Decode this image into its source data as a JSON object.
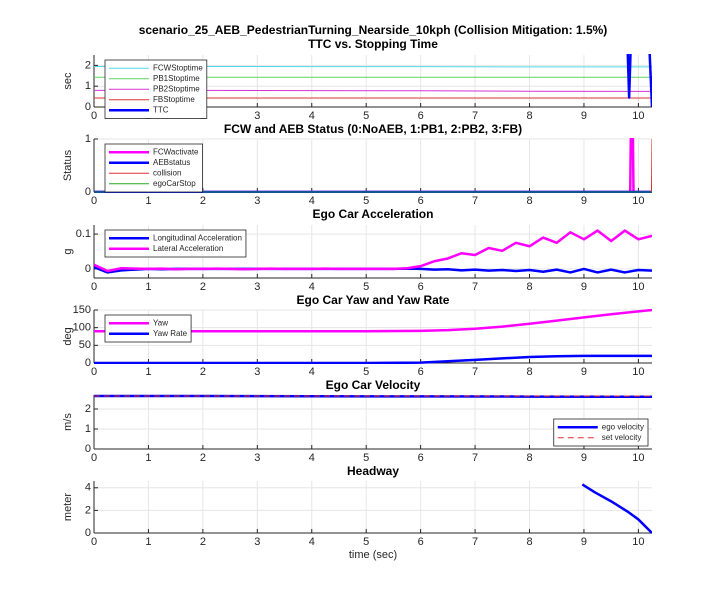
{
  "chart_data": [
    {
      "type": "line",
      "title": "scenario_25_AEB_PedestrianTurning_Nearside_10kph (Collision Mitigation: 1.5%)",
      "subtitle": "TTC vs. Stopping Time",
      "ylabel": "sec",
      "x": [
        0,
        2,
        4,
        6,
        8,
        9.8,
        9.83,
        9.86,
        10,
        10.2,
        10.25
      ],
      "xlim": [
        0,
        10.25
      ],
      "xticks": [
        0,
        1,
        2,
        3,
        4,
        5,
        6,
        7,
        8,
        9,
        10
      ],
      "ylim": [
        0,
        2.5
      ],
      "yticks": [
        0,
        1,
        2
      ],
      "grid": true,
      "legend": "upper left",
      "series": [
        {
          "name": "FCWStoptime",
          "color": "#4dd9e8",
          "width": 1,
          "values": [
            1.95,
            1.95,
            1.94,
            1.94,
            1.93,
            1.93,
            1.93,
            1.93,
            1.93,
            1.93,
            1.93
          ]
        },
        {
          "name": "PB1Stoptime",
          "color": "#5fd35f",
          "width": 1,
          "values": [
            1.43,
            1.43,
            1.43,
            1.43,
            1.43,
            1.43,
            1.43,
            1.43,
            1.43,
            1.43,
            1.43
          ]
        },
        {
          "name": "PB2Stoptime",
          "color": "#d633d6",
          "width": 1,
          "values": [
            0.8,
            0.8,
            0.79,
            0.78,
            0.76,
            0.75,
            0.75,
            0.75,
            0.75,
            0.75,
            0.75
          ]
        },
        {
          "name": "FBStoptime",
          "color": "#e03030",
          "width": 1,
          "values": [
            0.43,
            0.43,
            0.43,
            0.43,
            0.43,
            0.43,
            0.43,
            0.43,
            0.43,
            0.43,
            0.43
          ]
        },
        {
          "name": "TTC",
          "color": "#0000ff",
          "width": 2.5,
          "values": [
            null,
            null,
            null,
            null,
            null,
            3,
            0.45,
            3,
            null,
            3,
            0
          ]
        }
      ]
    },
    {
      "type": "line",
      "title": "FCW and AEB Status (0:NoAEB, 1:PB1, 2:PB2, 3:FB)",
      "ylabel": "Status",
      "x": [
        0,
        9.85,
        9.86,
        9.9,
        9.91,
        10.24,
        10.25
      ],
      "xlim": [
        0,
        10.25
      ],
      "xticks": [
        0,
        1,
        2,
        3,
        4,
        5,
        6,
        7,
        8,
        9,
        10
      ],
      "ylim": [
        0,
        1
      ],
      "yticks": [
        0,
        1
      ],
      "grid": true,
      "legend": "upper left",
      "series": [
        {
          "name": "FCWactivate",
          "color": "#ff00ff",
          "width": 2.5,
          "values": [
            0,
            0,
            1,
            1,
            0,
            0,
            0
          ]
        },
        {
          "name": "AEBstatus",
          "color": "#0000ff",
          "width": 2.5,
          "values": [
            0,
            0,
            0,
            0,
            0,
            0,
            0
          ]
        },
        {
          "name": "collision",
          "color": "#e03030",
          "width": 1,
          "values": [
            0,
            0,
            0,
            0,
            0,
            0,
            1
          ]
        },
        {
          "name": "egoCarStop",
          "color": "#22aa22",
          "width": 1,
          "values": [
            0,
            0,
            0,
            0,
            0,
            0,
            0
          ]
        }
      ]
    },
    {
      "type": "line",
      "title": "Ego Car Acceleration",
      "ylabel": "g",
      "x": [
        0,
        0.25,
        0.5,
        0.75,
        1,
        1.25,
        1.5,
        1.75,
        2,
        2.25,
        2.5,
        2.75,
        3,
        3.25,
        3.5,
        3.75,
        4,
        4.25,
        4.5,
        4.75,
        5,
        5.25,
        5.5,
        5.75,
        6,
        6.25,
        6.5,
        6.75,
        7,
        7.25,
        7.5,
        7.75,
        8,
        8.25,
        8.5,
        8.75,
        9,
        9.25,
        9.5,
        9.75,
        10,
        10.25
      ],
      "xlim": [
        0,
        10.25
      ],
      "xticks": [
        0,
        1,
        2,
        3,
        4,
        5,
        6,
        7,
        8,
        9,
        10
      ],
      "ylim": [
        -0.026,
        0.126
      ],
      "yticks": [
        0,
        0.1
      ],
      "grid": true,
      "legend": "upper left",
      "series": [
        {
          "name": "Longitudinal Acceleration",
          "color": "#0000ff",
          "width": 2.5,
          "values": [
            0.005,
            -0.01,
            -0.004,
            -0.002,
            0,
            -0.001,
            0,
            0,
            0,
            0,
            0,
            0,
            0,
            0,
            0,
            0,
            0,
            0,
            0,
            0,
            0,
            0,
            0,
            0.001,
            0,
            -0.002,
            -0.001,
            -0.004,
            -0.002,
            -0.005,
            -0.003,
            -0.006,
            -0.003,
            -0.008,
            -0.002,
            -0.01,
            0,
            -0.01,
            -0.002,
            -0.01,
            -0.003,
            -0.005
          ]
        },
        {
          "name": "Lateral Acceleration",
          "color": "#ff00ff",
          "width": 2.5,
          "values": [
            0.012,
            -0.006,
            0.002,
            0.001,
            0,
            0.001,
            -0.001,
            0,
            0,
            0.001,
            0,
            -0.001,
            0,
            0.001,
            0,
            0,
            0,
            0.001,
            0,
            0,
            0,
            0,
            0,
            0.002,
            0.008,
            0.022,
            0.03,
            0.045,
            0.04,
            0.06,
            0.052,
            0.075,
            0.065,
            0.09,
            0.075,
            0.105,
            0.085,
            0.11,
            0.08,
            0.11,
            0.085,
            0.095
          ]
        }
      ]
    },
    {
      "type": "line",
      "title": "Ego Car Yaw and Yaw Rate",
      "ylabel": "deg",
      "x": [
        0,
        1,
        2,
        3,
        4,
        5,
        6,
        6.5,
        7,
        7.5,
        8,
        8.5,
        9,
        9.5,
        10,
        10.25
      ],
      "xlim": [
        0,
        10.25
      ],
      "xticks": [
        0,
        1,
        2,
        3,
        4,
        5,
        6,
        7,
        8,
        9,
        10
      ],
      "ylim": [
        0,
        150
      ],
      "yticks": [
        0,
        50,
        100,
        150
      ],
      "grid": true,
      "legend": "upper left",
      "series": [
        {
          "name": "Yaw",
          "color": "#ff00ff",
          "width": 2.5,
          "values": [
            90,
            90,
            90,
            90,
            90,
            90,
            91,
            93,
            97,
            103,
            111,
            120,
            129,
            138,
            146,
            150
          ]
        },
        {
          "name": "Yaw Rate",
          "color": "#0000ff",
          "width": 2.5,
          "values": [
            0,
            0,
            0,
            0,
            0,
            0,
            1,
            5,
            9,
            13,
            17,
            19,
            20,
            20,
            20,
            20
          ]
        }
      ]
    },
    {
      "type": "line",
      "title": "Ego Car Velocity",
      "ylabel": "m/s",
      "x": [
        0,
        2,
        4,
        6,
        8,
        10,
        10.25
      ],
      "xlim": [
        0,
        10.25
      ],
      "xticks": [
        0,
        1,
        2,
        3,
        4,
        5,
        6,
        7,
        8,
        9,
        10
      ],
      "ylim": [
        0,
        2.7
      ],
      "yticks": [
        0,
        1,
        2
      ],
      "grid": true,
      "legend": "lower right",
      "series": [
        {
          "name": "ego velocity",
          "color": "#0000ff",
          "width": 2.5,
          "values": [
            2.65,
            2.65,
            2.64,
            2.63,
            2.62,
            2.61,
            2.61
          ]
        },
        {
          "name": "set velocity",
          "color": "#e03030",
          "width": 1,
          "style": "dashed",
          "values": [
            2.65,
            2.65,
            2.65,
            2.65,
            2.65,
            2.65,
            2.65
          ]
        }
      ]
    },
    {
      "type": "line",
      "title": "Headway",
      "ylabel": "meter",
      "xlabel": "time (sec)",
      "x": [
        0,
        8.9,
        8.97,
        9.2,
        9.5,
        9.8,
        10,
        10.25
      ],
      "xlim": [
        0,
        10.25
      ],
      "xticks": [
        0,
        1,
        2,
        3,
        4,
        5,
        6,
        7,
        8,
        9,
        10
      ],
      "ylim": [
        0,
        4.6
      ],
      "yticks": [
        0,
        2,
        4
      ],
      "grid": true,
      "series": [
        {
          "color": "#0000ff",
          "width": 2.5,
          "values": [
            null,
            null,
            4.3,
            3.6,
            2.8,
            1.9,
            1.2,
            0
          ]
        }
      ]
    }
  ]
}
